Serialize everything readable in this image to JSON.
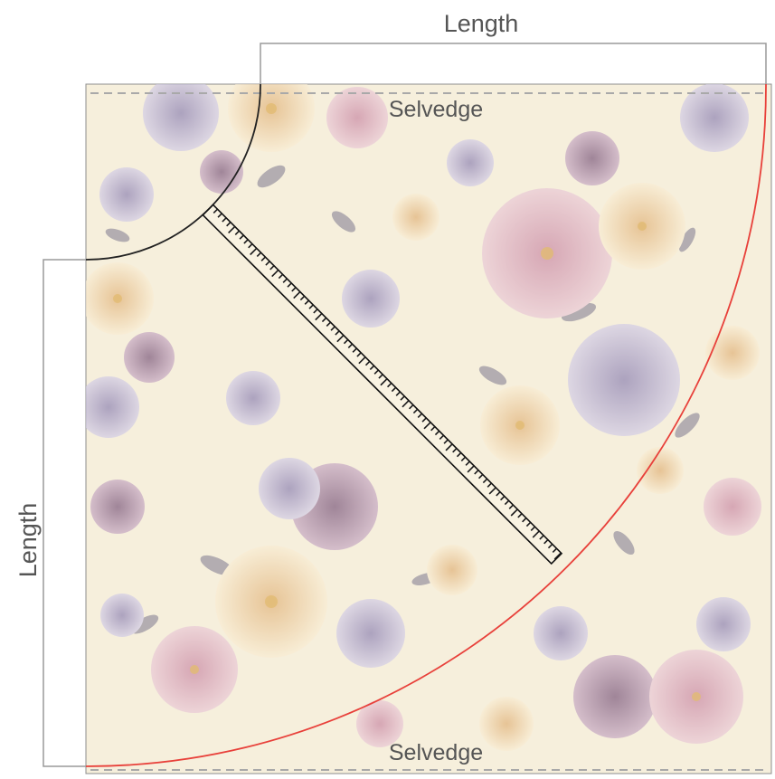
{
  "labels": {
    "top_length": "Length",
    "left_length": "Length",
    "selvedge_top": "Selvedge",
    "selvedge_bottom": "Selvedge"
  },
  "colors": {
    "fabric_base": "#f6efdc",
    "outer_arc": "#e8403a",
    "inner_arc": "#222222",
    "guide_lines": "#9a9a9a",
    "selvedge_dash": "#a9a9a9",
    "ruler_ticks": "#1a1a1a",
    "label_text": "#555555"
  },
  "icons": [
    "floral-fabric-pattern",
    "measuring-ruler"
  ]
}
